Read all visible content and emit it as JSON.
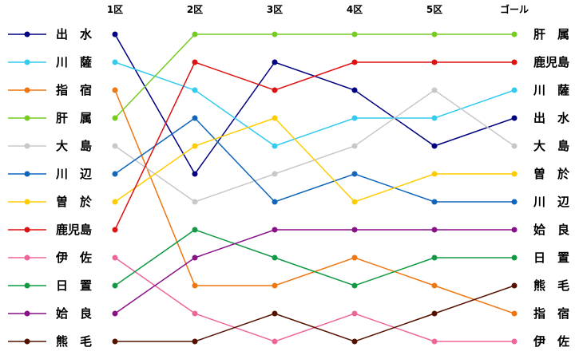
{
  "chart_data": {
    "type": "line",
    "title": "",
    "xlabel": "",
    "ylabel": "",
    "x": [
      "1区",
      "2区",
      "3区",
      "4区",
      "5区",
      "ゴール"
    ],
    "ylim": [
      12,
      1
    ],
    "grid": false,
    "legend_position": "left",
    "series": [
      {
        "name": "出　水",
        "color": "#000080",
        "values": [
          1,
          6,
          2,
          3,
          5,
          4
        ]
      },
      {
        "name": "川　薩",
        "color": "#33ccee",
        "values": [
          2,
          3,
          5,
          4,
          4,
          3
        ]
      },
      {
        "name": "指　宿",
        "color": "#ee7711",
        "values": [
          3,
          10,
          10,
          9,
          10,
          11
        ]
      },
      {
        "name": "肝　属",
        "color": "#77cc22",
        "values": [
          4,
          1,
          1,
          1,
          1,
          1
        ]
      },
      {
        "name": "大　島",
        "color": "#c8c8c8",
        "values": [
          5,
          7,
          6,
          5,
          3,
          5
        ]
      },
      {
        "name": "川　辺",
        "color": "#1166bb",
        "values": [
          6,
          4,
          7,
          6,
          7,
          7
        ]
      },
      {
        "name": "曽　於",
        "color": "#ffcc00",
        "values": [
          7,
          5,
          4,
          7,
          6,
          6
        ]
      },
      {
        "name": "鹿児島",
        "color": "#dd1111",
        "values": [
          8,
          2,
          3,
          2,
          2,
          2
        ]
      },
      {
        "name": "伊　佐",
        "color": "#ee6699",
        "values": [
          9,
          11,
          12,
          11,
          12,
          12
        ]
      },
      {
        "name": "日　置",
        "color": "#119944",
        "values": [
          10,
          8,
          9,
          10,
          9,
          9
        ]
      },
      {
        "name": "姶　良",
        "color": "#881188",
        "values": [
          11,
          9,
          8,
          8,
          8,
          8
        ]
      },
      {
        "name": "熊　毛",
        "color": "#551100",
        "values": [
          12,
          12,
          11,
          12,
          11,
          10
        ]
      }
    ]
  }
}
